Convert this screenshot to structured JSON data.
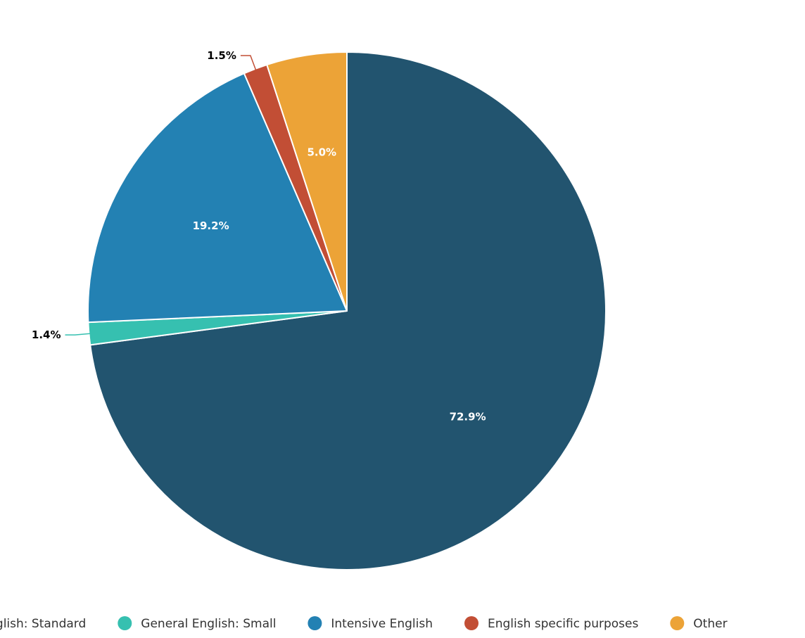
{
  "chart_data": {
    "type": "pie",
    "categories": [
      "General English: Standard",
      "General English: Small",
      "Intensive English",
      "English specific purposes",
      "Other"
    ],
    "values": [
      72.9,
      1.4,
      19.2,
      1.5,
      5.0
    ],
    "value_labels": [
      "72.9%",
      "1.4%",
      "19.2%",
      "1.5%",
      "5.0%"
    ],
    "colors": [
      "#22546f",
      "#36c0b0",
      "#2381b3",
      "#c24e35",
      "#eca337"
    ],
    "legend_placement": "bottom",
    "start_angle_deg": 0,
    "direction": "clockwise"
  }
}
